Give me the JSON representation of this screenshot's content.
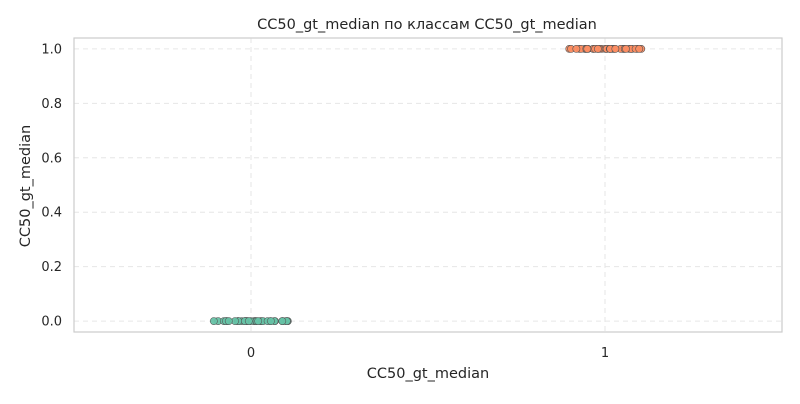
{
  "chart_data": {
    "type": "scatter",
    "title": "CC50_gt_median по классам CC50_gt_median",
    "xlabel": "CC50_gt_median",
    "ylabel": "CC50_gt_median",
    "categories": [
      "0",
      "1"
    ],
    "ylim": [
      -0.04,
      1.04
    ],
    "yticks": [
      "0.0",
      "0.2",
      "0.4",
      "0.6",
      "0.8",
      "1.0"
    ],
    "grid": true,
    "jitter": "strip",
    "series": [
      {
        "category": "0",
        "y": 0,
        "color": "#66c2a5",
        "count": 40
      },
      {
        "category": "1",
        "y": 1,
        "color": "#fc8d62",
        "count": 40
      }
    ]
  }
}
